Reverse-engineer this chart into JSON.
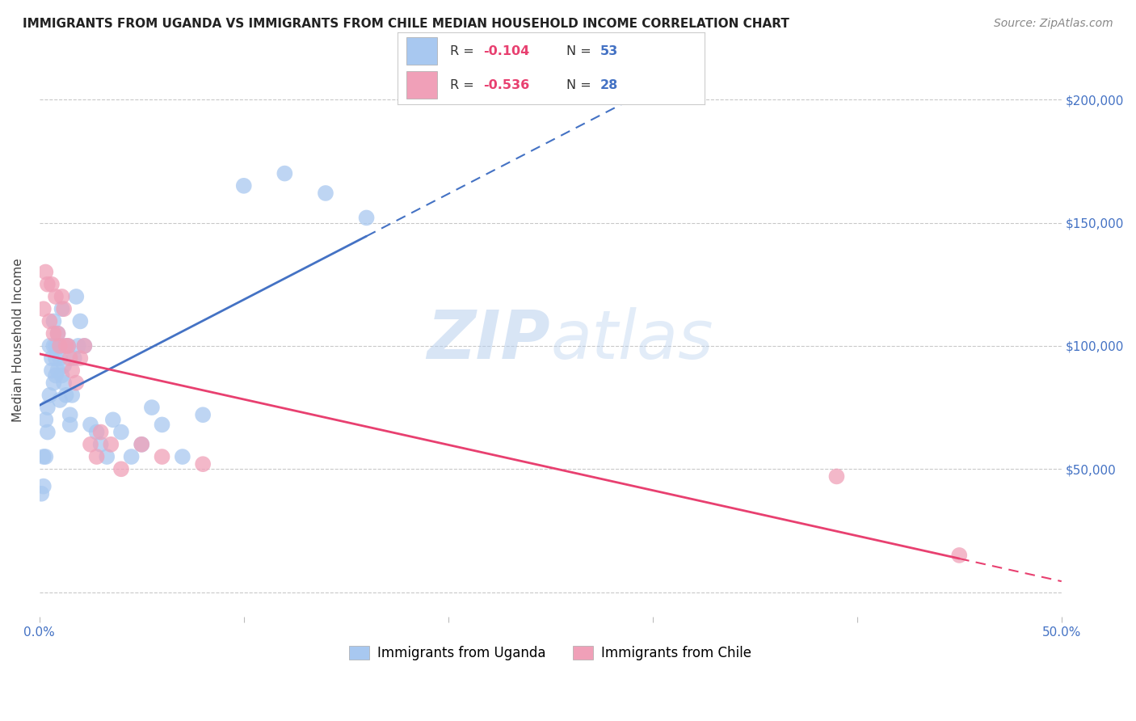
{
  "title": "IMMIGRANTS FROM UGANDA VS IMMIGRANTS FROM CHILE MEDIAN HOUSEHOLD INCOME CORRELATION CHART",
  "source": "Source: ZipAtlas.com",
  "ylabel": "Median Household Income",
  "xlim": [
    0.0,
    0.5
  ],
  "ylim": [
    -10000,
    215000
  ],
  "yticks": [
    0,
    50000,
    100000,
    150000,
    200000
  ],
  "ytick_labels": [
    "",
    "$50,000",
    "$100,000",
    "$150,000",
    "$200,000"
  ],
  "xticks": [
    0.0,
    0.1,
    0.2,
    0.3,
    0.4,
    0.5
  ],
  "xtick_labels": [
    "0.0%",
    "",
    "",
    "",
    "",
    "50.0%"
  ],
  "color_uganda": "#A8C8F0",
  "color_chile": "#F0A0B8",
  "color_uganda_line": "#4472C4",
  "color_chile_line": "#E84070",
  "color_axis_labels": "#4472C4",
  "background_color": "#FFFFFF",
  "watermark_zip": "ZIP",
  "watermark_atlas": "atlas",
  "uganda_x": [
    0.001,
    0.002,
    0.002,
    0.003,
    0.003,
    0.004,
    0.004,
    0.005,
    0.005,
    0.006,
    0.006,
    0.007,
    0.007,
    0.007,
    0.008,
    0.008,
    0.008,
    0.009,
    0.009,
    0.01,
    0.01,
    0.01,
    0.011,
    0.011,
    0.012,
    0.012,
    0.012,
    0.013,
    0.014,
    0.015,
    0.015,
    0.016,
    0.017,
    0.018,
    0.019,
    0.02,
    0.022,
    0.025,
    0.028,
    0.03,
    0.033,
    0.036,
    0.04,
    0.045,
    0.05,
    0.055,
    0.06,
    0.07,
    0.08,
    0.1,
    0.12,
    0.14,
    0.16
  ],
  "uganda_y": [
    40000,
    55000,
    43000,
    70000,
    55000,
    65000,
    75000,
    80000,
    100000,
    90000,
    95000,
    100000,
    85000,
    110000,
    100000,
    95000,
    88000,
    105000,
    90000,
    100000,
    95000,
    78000,
    115000,
    88000,
    100000,
    85000,
    92000,
    80000,
    100000,
    72000,
    68000,
    80000,
    95000,
    120000,
    100000,
    110000,
    100000,
    68000,
    65000,
    60000,
    55000,
    70000,
    65000,
    55000,
    60000,
    75000,
    68000,
    55000,
    72000,
    165000,
    170000,
    162000,
    152000
  ],
  "chile_x": [
    0.002,
    0.003,
    0.004,
    0.005,
    0.006,
    0.007,
    0.008,
    0.009,
    0.01,
    0.011,
    0.012,
    0.013,
    0.014,
    0.015,
    0.016,
    0.018,
    0.02,
    0.022,
    0.025,
    0.028,
    0.03,
    0.035,
    0.04,
    0.05,
    0.06,
    0.08,
    0.39,
    0.45
  ],
  "chile_y": [
    115000,
    130000,
    125000,
    110000,
    125000,
    105000,
    120000,
    105000,
    100000,
    120000,
    115000,
    100000,
    100000,
    95000,
    90000,
    85000,
    95000,
    100000,
    60000,
    55000,
    65000,
    60000,
    50000,
    60000,
    55000,
    52000,
    47000,
    15000
  ],
  "title_fontsize": 11,
  "source_fontsize": 10,
  "axis_label_fontsize": 11,
  "tick_label_fontsize": 11,
  "legend_fontsize": 12
}
